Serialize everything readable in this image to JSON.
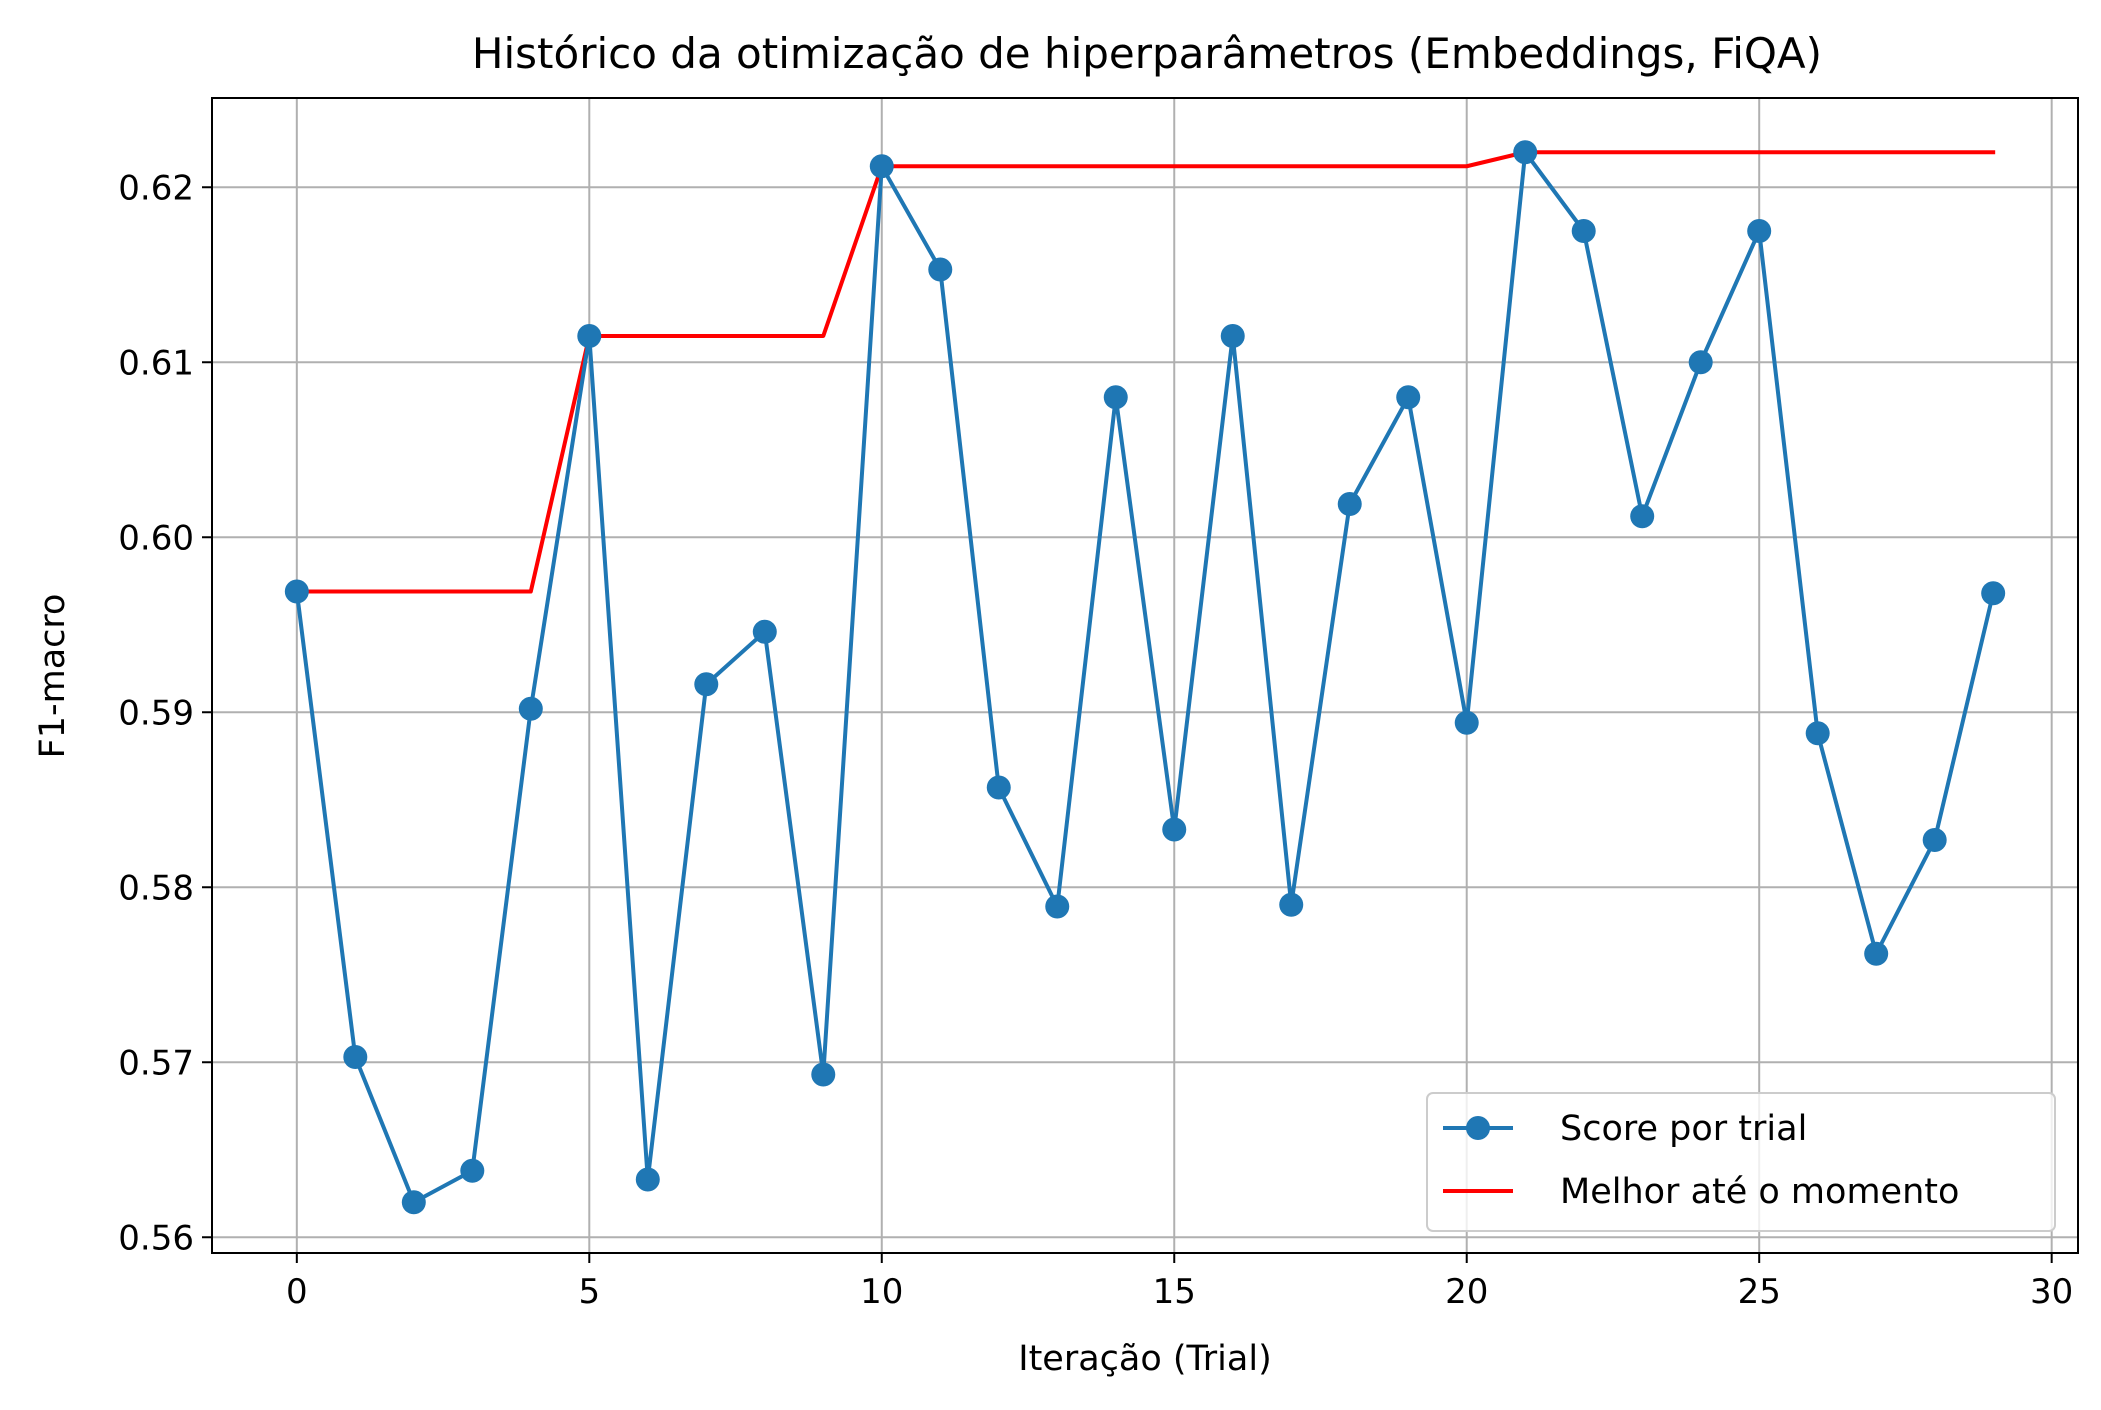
{
  "chart_data": {
    "type": "line",
    "title": "Histórico da otimização de hiperparâmetros (Embeddings, FiQA)",
    "xlabel": "Iteração (Trial)",
    "ylabel": "F1-macro",
    "xlim": [
      -1.45,
      30.45
    ],
    "ylim": [
      0.5591,
      0.6251
    ],
    "xticks": [
      0,
      5,
      10,
      15,
      20,
      25,
      30
    ],
    "yticks": [
      0.56,
      0.57,
      0.58,
      0.59,
      0.6,
      0.61,
      0.62
    ],
    "ytick_labels": [
      "0.56",
      "0.57",
      "0.58",
      "0.59",
      "0.60",
      "0.61",
      "0.62"
    ],
    "grid": true,
    "legend_position": "lower-right",
    "x": [
      0,
      1,
      2,
      3,
      4,
      5,
      6,
      7,
      8,
      9,
      10,
      11,
      12,
      13,
      14,
      15,
      16,
      17,
      18,
      19,
      20,
      21,
      22,
      23,
      24,
      25,
      26,
      27,
      28,
      29
    ],
    "series": [
      {
        "name": "Score por trial",
        "color": "#1f77b4",
        "marker": "circle",
        "values": [
          0.5969,
          0.5703,
          0.562,
          0.5638,
          0.5902,
          0.6115,
          0.5633,
          0.5916,
          0.5946,
          0.5693,
          0.6212,
          0.6153,
          0.5857,
          0.5789,
          0.608,
          0.5833,
          0.6115,
          0.579,
          0.6019,
          0.608,
          0.5894,
          0.622,
          0.6175,
          0.6012,
          0.61,
          0.6175,
          0.5888,
          0.5762,
          0.5827,
          0.5968
        ]
      },
      {
        "name": "Melhor até o momento",
        "color": "#ff0000",
        "marker": "none",
        "values": [
          0.5969,
          0.5969,
          0.5969,
          0.5969,
          0.5969,
          0.6115,
          0.6115,
          0.6115,
          0.6115,
          0.6115,
          0.6212,
          0.6212,
          0.6212,
          0.6212,
          0.6212,
          0.6212,
          0.6212,
          0.6212,
          0.6212,
          0.6212,
          0.6212,
          0.622,
          0.622,
          0.622,
          0.622,
          0.622,
          0.622,
          0.622,
          0.622,
          0.622
        ]
      }
    ]
  }
}
